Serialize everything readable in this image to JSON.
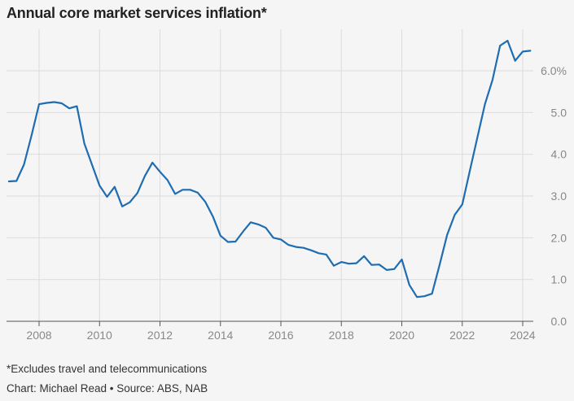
{
  "chart_data": {
    "type": "line",
    "title": "Annual core market services inflation*",
    "xlabel": "",
    "ylabel": "",
    "xlim": [
      2007,
      2024.4
    ],
    "ylim": [
      0,
      7
    ],
    "x_ticks": [
      2008,
      2010,
      2012,
      2014,
      2016,
      2018,
      2020,
      2022,
      2024
    ],
    "x_tick_labels": [
      "2008",
      "2010",
      "2012",
      "2014",
      "2016",
      "2018",
      "2020",
      "2022",
      "2024"
    ],
    "y_ticks": [
      0,
      1,
      2,
      3,
      4,
      5,
      6
    ],
    "y_tick_labels": [
      "0.0",
      "1.0",
      "2.0",
      "3.0",
      "4.0",
      "5.0",
      "6.0%"
    ],
    "grid": true,
    "color": "#1f6db0",
    "series": [
      {
        "name": "Annual core market services inflation",
        "x": [
          2007.0,
          2007.25,
          2007.5,
          2007.75,
          2008.0,
          2008.25,
          2008.5,
          2008.75,
          2009.0,
          2009.25,
          2009.5,
          2009.75,
          2010.0,
          2010.25,
          2010.5,
          2010.75,
          2011.0,
          2011.25,
          2011.5,
          2011.75,
          2012.0,
          2012.25,
          2012.5,
          2012.75,
          2013.0,
          2013.25,
          2013.5,
          2013.75,
          2014.0,
          2014.25,
          2014.5,
          2014.75,
          2015.0,
          2015.25,
          2015.5,
          2015.75,
          2016.0,
          2016.25,
          2016.5,
          2016.75,
          2017.0,
          2017.25,
          2017.5,
          2017.75,
          2018.0,
          2018.25,
          2018.5,
          2018.75,
          2019.0,
          2019.25,
          2019.5,
          2019.75,
          2020.0,
          2020.25,
          2020.5,
          2020.75,
          2021.0,
          2021.25,
          2021.5,
          2021.75,
          2022.0,
          2022.25,
          2022.5,
          2022.75,
          2023.0,
          2023.25,
          2023.5,
          2023.75,
          2024.0,
          2024.25
        ],
        "values": [
          3.35,
          3.36,
          3.75,
          4.45,
          5.2,
          5.23,
          5.25,
          5.22,
          5.1,
          5.15,
          4.25,
          3.75,
          3.25,
          2.98,
          3.22,
          2.75,
          2.85,
          3.07,
          3.48,
          3.8,
          3.58,
          3.38,
          3.05,
          3.15,
          3.15,
          3.08,
          2.86,
          2.51,
          2.05,
          1.9,
          1.91,
          2.15,
          2.37,
          2.32,
          2.24,
          2.0,
          1.96,
          1.83,
          1.78,
          1.76,
          1.7,
          1.63,
          1.6,
          1.33,
          1.42,
          1.38,
          1.39,
          1.56,
          1.35,
          1.36,
          1.23,
          1.25,
          1.48,
          0.87,
          0.58,
          0.6,
          0.66,
          1.35,
          2.07,
          2.55,
          2.8,
          3.6,
          4.4,
          5.2,
          5.78,
          6.6,
          6.72,
          6.24,
          6.46,
          6.48
        ]
      }
    ]
  },
  "footnotes": {
    "note": "*Excludes travel and telecommunications",
    "credit": "Chart: Michael Read • Source: ABS, NAB"
  }
}
